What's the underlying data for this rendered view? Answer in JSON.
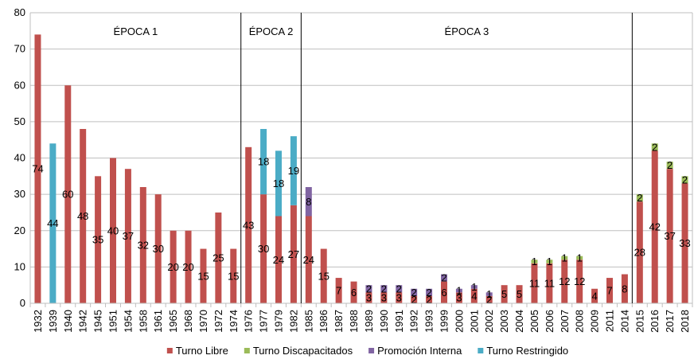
{
  "chart_data": {
    "type": "bar",
    "stacked": true,
    "categories": [
      "1932",
      "1939",
      "1940",
      "1942",
      "1945",
      "1951",
      "1954",
      "1958",
      "1961",
      "1965",
      "1968",
      "1970",
      "1972",
      "1974",
      "1976",
      "1977",
      "1979",
      "1982",
      "1985",
      "1986",
      "1987",
      "1988",
      "1989",
      "1990",
      "1991",
      "1992",
      "1993",
      "1999",
      "2000",
      "2001",
      "2002",
      "2003",
      "2004",
      "2005",
      "2006",
      "2007",
      "2008",
      "2009",
      "2011",
      "2014",
      "2015",
      "2016",
      "2017",
      "2018"
    ],
    "series": [
      {
        "name": "Turno Libre",
        "color": "#c0504d",
        "values": [
          74,
          0,
          60,
          48,
          35,
          40,
          37,
          32,
          30,
          20,
          20,
          15,
          25,
          15,
          43,
          30,
          24,
          27,
          24,
          15,
          7,
          6,
          3,
          3,
          3,
          2,
          2,
          6,
          3,
          4,
          2,
          5,
          5,
          11,
          11,
          12,
          12,
          4,
          7,
          8,
          28,
          42,
          37,
          33
        ]
      },
      {
        "name": "Turno Discapacitados",
        "color": "#9bbb59",
        "values": [
          0,
          0,
          0,
          0,
          0,
          0,
          0,
          0,
          0,
          0,
          0,
          0,
          0,
          0,
          0,
          0,
          0,
          0,
          0,
          0,
          0,
          0,
          0,
          0,
          0,
          0,
          0,
          0,
          0,
          0,
          0,
          0,
          0,
          1,
          1,
          1,
          1,
          0,
          0,
          0,
          2,
          2,
          2,
          2
        ]
      },
      {
        "name": "Promoción Interna",
        "color": "#8064a2",
        "values": [
          0,
          0,
          0,
          0,
          0,
          0,
          0,
          0,
          0,
          0,
          0,
          0,
          0,
          0,
          0,
          0,
          0,
          0,
          8,
          0,
          0,
          0,
          2,
          2,
          2,
          2,
          2,
          2,
          1,
          1,
          1,
          0,
          0,
          0,
          0,
          0,
          0,
          0,
          0,
          0,
          0,
          0,
          0,
          0
        ]
      },
      {
        "name": "Turno Restringido",
        "color": "#4bacc6",
        "values": [
          0,
          44,
          0,
          0,
          0,
          0,
          0,
          0,
          0,
          0,
          0,
          0,
          0,
          0,
          0,
          18,
          18,
          19,
          0,
          0,
          0,
          0,
          0,
          0,
          0,
          0,
          0,
          0,
          0,
          0,
          0,
          0,
          0,
          0,
          0,
          0,
          0,
          0,
          0,
          0,
          0,
          0,
          0,
          0
        ]
      }
    ],
    "ylim": [
      0,
      80
    ],
    "yticks": [
      0,
      10,
      20,
      30,
      40,
      50,
      60,
      70,
      80
    ],
    "grid": true,
    "legend_position": "bottom",
    "epochs": [
      {
        "label": "ÉPOCA 1",
        "from": "1932",
        "to": "1974"
      },
      {
        "label": "ÉPOCA 2",
        "from": "1976",
        "to": "1982"
      },
      {
        "label": "ÉPOCA 3",
        "from": "1985",
        "to": "2014"
      }
    ],
    "separators_after": [
      "1974",
      "1982",
      "2014"
    ]
  }
}
